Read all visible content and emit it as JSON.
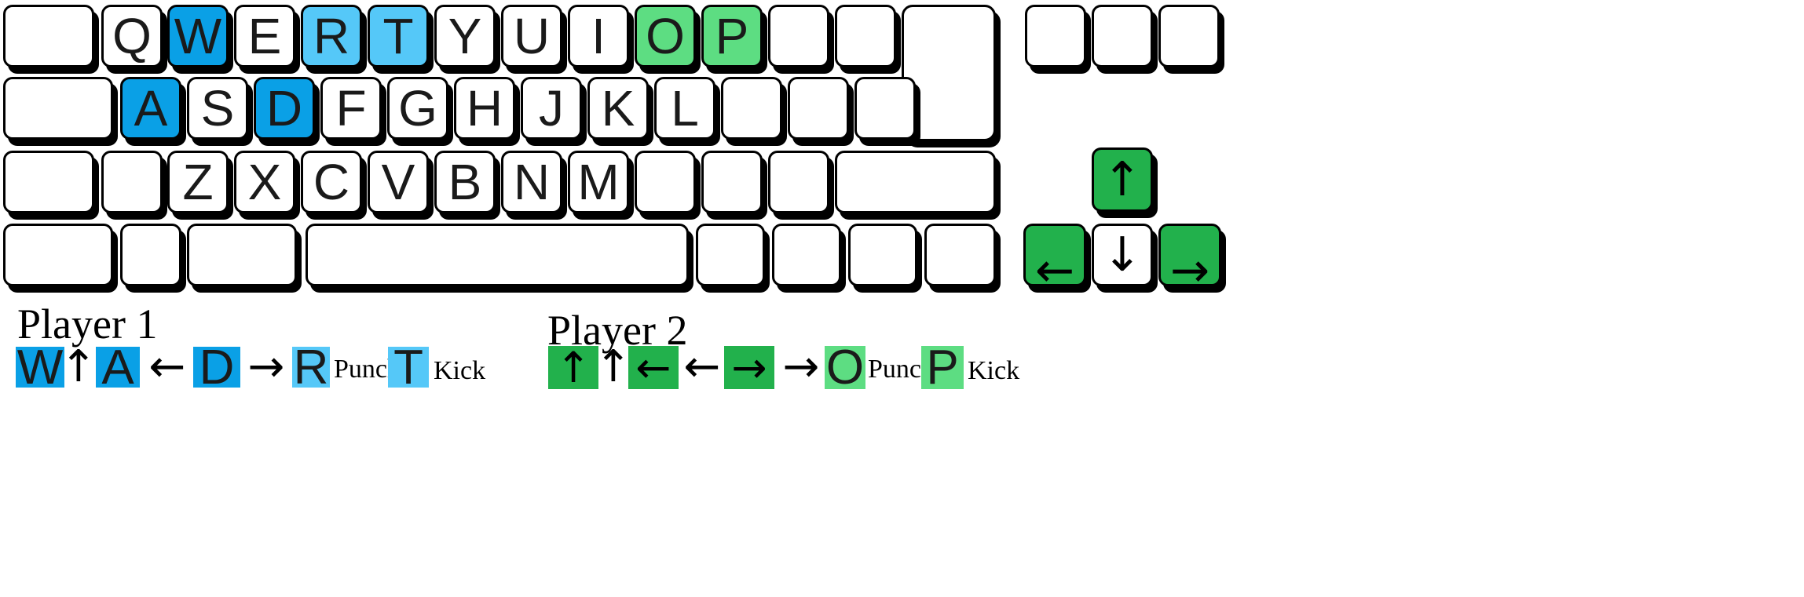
{
  "colors": {
    "p1_primary": "#0aa0e6",
    "p1_secondary": "#55c8f8",
    "p2_primary": "#22b14c",
    "p2_secondary": "#5ddd82",
    "key_plain": "#ffffff"
  },
  "keyboard": {
    "row_q": [
      "Q",
      "W",
      "E",
      "R",
      "T",
      "Y",
      "U",
      "I",
      "O",
      "P"
    ],
    "row_a": [
      "A",
      "S",
      "D",
      "F",
      "G",
      "H",
      "J",
      "K",
      "L"
    ],
    "row_z": [
      "Z",
      "X",
      "C",
      "V",
      "B",
      "N",
      "M"
    ],
    "arrows": {
      "up": "↑",
      "down": "↓",
      "left": "←",
      "right": "→"
    }
  },
  "legend": {
    "player1": {
      "title": "Player 1",
      "keys": {
        "up": "W",
        "left": "A",
        "right": "D",
        "punch": "R",
        "kick": "T"
      },
      "glyphs": {
        "up": "↑",
        "left": "←",
        "right": "→"
      },
      "labels": {
        "punch": "Punch",
        "kick": "Kick"
      }
    },
    "player2": {
      "title": "Player 2",
      "keys": {
        "up": "↑",
        "left": "←",
        "right": "→",
        "punch": "O",
        "kick": "P"
      },
      "glyphs": {
        "up": "↑",
        "left": "←",
        "right": "→"
      },
      "labels": {
        "punch": "Punch",
        "kick": "Kick"
      }
    }
  }
}
